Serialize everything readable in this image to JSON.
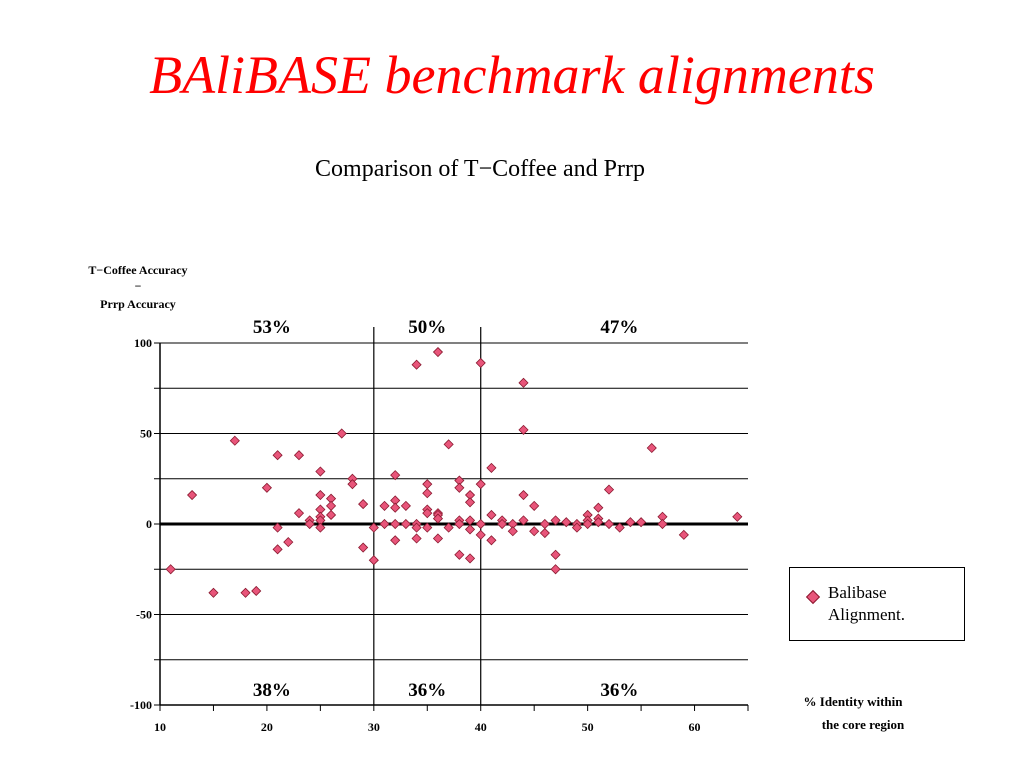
{
  "slide": {
    "title": "BAliBASE benchmark alignments"
  },
  "legend": {
    "line1": "Balibase",
    "line2": "Alignment."
  },
  "chart_data": {
    "type": "scatter",
    "title": "Comparison of T−Coffee and Prrp",
    "ylabel": [
      "T−Coffee Accuracy",
      "−",
      "Prrp Accuracy"
    ],
    "xlabel": [
      "% Identity within",
      "the core region"
    ],
    "xlim": [
      10,
      65
    ],
    "ylim": [
      -100,
      100
    ],
    "xticks": [
      10,
      20,
      30,
      40,
      50,
      60
    ],
    "yticks": [
      -100,
      -50,
      0,
      50,
      100
    ],
    "grid": "horizontal",
    "vertical_lines": [
      30,
      40
    ],
    "region_labels": {
      "top": [
        "53%",
        "50%",
        "47%"
      ],
      "bottom": [
        "38%",
        "36%",
        "36%"
      ]
    },
    "legend": "Balibase Alignment.",
    "series": [
      {
        "name": "Balibase Alignment.",
        "color": "#e8557a",
        "points": [
          [
            11,
            -25
          ],
          [
            13,
            16
          ],
          [
            15,
            -38
          ],
          [
            17,
            46
          ],
          [
            18,
            -38
          ],
          [
            19,
            -37
          ],
          [
            20,
            20
          ],
          [
            21,
            38
          ],
          [
            21,
            -2
          ],
          [
            21,
            -14
          ],
          [
            22,
            -10
          ],
          [
            23,
            38
          ],
          [
            23,
            6
          ],
          [
            24,
            2
          ],
          [
            24,
            0
          ],
          [
            25,
            29
          ],
          [
            25,
            16
          ],
          [
            25,
            8
          ],
          [
            25,
            4
          ],
          [
            25,
            2
          ],
          [
            25,
            -2
          ],
          [
            26,
            14
          ],
          [
            26,
            10
          ],
          [
            26,
            5
          ],
          [
            27,
            50
          ],
          [
            28,
            25
          ],
          [
            28,
            22
          ],
          [
            29,
            11
          ],
          [
            29,
            -13
          ],
          [
            30,
            -20
          ],
          [
            30,
            -2
          ],
          [
            31,
            0
          ],
          [
            31,
            10
          ],
          [
            32,
            27
          ],
          [
            32,
            13
          ],
          [
            32,
            9
          ],
          [
            32,
            0
          ],
          [
            32,
            -9
          ],
          [
            33,
            10
          ],
          [
            33,
            0
          ],
          [
            34,
            88
          ],
          [
            34,
            0
          ],
          [
            34,
            -2
          ],
          [
            34,
            -8
          ],
          [
            35,
            22
          ],
          [
            35,
            17
          ],
          [
            35,
            8
          ],
          [
            35,
            6
          ],
          [
            35,
            -2
          ],
          [
            36,
            95
          ],
          [
            36,
            6
          ],
          [
            36,
            5
          ],
          [
            36,
            3
          ],
          [
            36,
            -8
          ],
          [
            37,
            44
          ],
          [
            37,
            -2
          ],
          [
            38,
            24
          ],
          [
            38,
            20
          ],
          [
            38,
            2
          ],
          [
            38,
            0
          ],
          [
            38,
            -17
          ],
          [
            39,
            16
          ],
          [
            39,
            12
          ],
          [
            39,
            2
          ],
          [
            39,
            -3
          ],
          [
            39,
            -19
          ],
          [
            40,
            89
          ],
          [
            40,
            22
          ],
          [
            40,
            0
          ],
          [
            40,
            -6
          ],
          [
            41,
            31
          ],
          [
            41,
            5
          ],
          [
            41,
            -9
          ],
          [
            42,
            2
          ],
          [
            42,
            0
          ],
          [
            43,
            0
          ],
          [
            43,
            -4
          ],
          [
            44,
            78
          ],
          [
            44,
            52
          ],
          [
            44,
            16
          ],
          [
            44,
            2
          ],
          [
            45,
            10
          ],
          [
            45,
            -4
          ],
          [
            46,
            0
          ],
          [
            46,
            -5
          ],
          [
            47,
            2
          ],
          [
            47,
            -17
          ],
          [
            47,
            -25
          ],
          [
            48,
            1
          ],
          [
            49,
            0
          ],
          [
            49,
            -2
          ],
          [
            50,
            5
          ],
          [
            50,
            2
          ],
          [
            50,
            0
          ],
          [
            51,
            9
          ],
          [
            51,
            3
          ],
          [
            51,
            1
          ],
          [
            52,
            19
          ],
          [
            52,
            0
          ],
          [
            53,
            -2
          ],
          [
            54,
            1
          ],
          [
            55,
            1
          ],
          [
            56,
            42
          ],
          [
            57,
            4
          ],
          [
            57,
            0
          ],
          [
            59,
            -6
          ],
          [
            64,
            4
          ]
        ]
      }
    ]
  }
}
